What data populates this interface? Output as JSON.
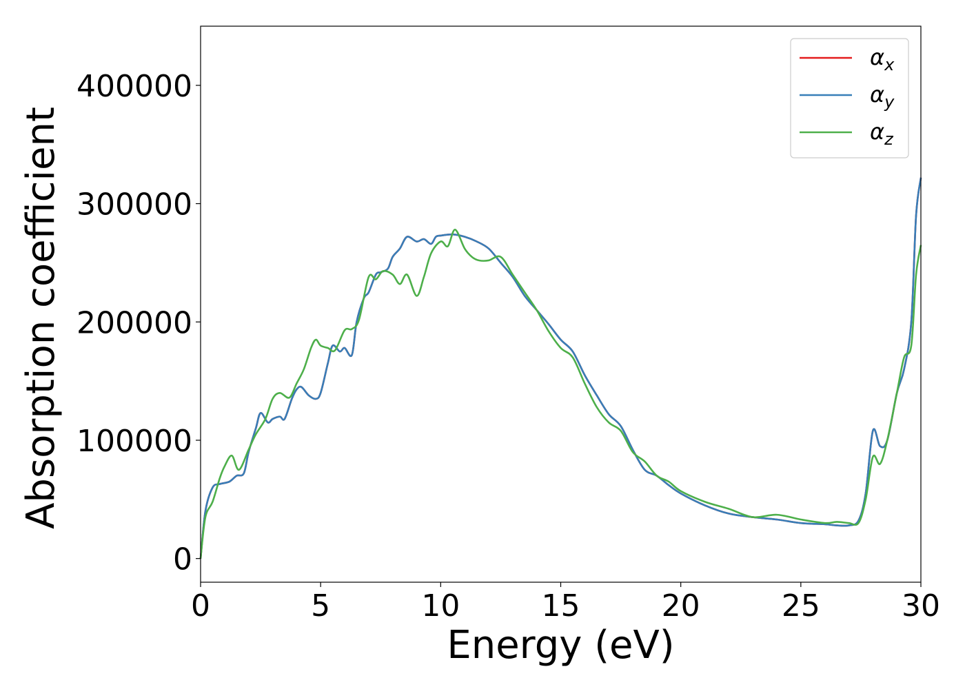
{
  "chart_data": {
    "type": "line",
    "xlabel": "Energy (eV)",
    "ylabel": "Absorption coefficient",
    "xlim": [
      0,
      30
    ],
    "ylim": [
      -20000,
      450000
    ],
    "xticks": [
      0,
      5,
      10,
      15,
      20,
      25,
      30
    ],
    "yticks": [
      0,
      100000,
      200000,
      300000,
      400000
    ],
    "legend_position": "top-right",
    "grid": false,
    "series": [
      {
        "name": "αx",
        "name_base": "α",
        "name_sub": "x",
        "color": "#e41a1c",
        "x": [
          0,
          0.2,
          0.5,
          0.8,
          1.2,
          1.5,
          1.8,
          2.0,
          2.3,
          2.5,
          2.8,
          3.0,
          3.3,
          3.5,
          3.8,
          4.0,
          4.2,
          4.5,
          4.8,
          5.0,
          5.3,
          5.5,
          5.8,
          6.0,
          6.3,
          6.5,
          6.8,
          7.0,
          7.3,
          7.5,
          7.8,
          8.0,
          8.3,
          8.6,
          9.0,
          9.3,
          9.6,
          9.8,
          10.0,
          10.5,
          11.0,
          11.5,
          12.0,
          12.5,
          13.0,
          13.5,
          14.0,
          14.5,
          15.0,
          15.5,
          16.0,
          16.5,
          17.0,
          17.5,
          18.0,
          18.5,
          19.0,
          19.5,
          20.0,
          21.0,
          22.0,
          23.0,
          24.0,
          25.0,
          26.0,
          26.5,
          27.0,
          27.4,
          27.7,
          28.0,
          28.3,
          28.6,
          29.0,
          29.3,
          29.6,
          29.8,
          30.0
        ],
        "y": [
          0,
          40000,
          60000,
          63000,
          65000,
          70000,
          72000,
          90000,
          110000,
          123000,
          115000,
          118000,
          120000,
          118000,
          135000,
          143000,
          145000,
          138000,
          135000,
          140000,
          165000,
          180000,
          175000,
          178000,
          172000,
          200000,
          220000,
          225000,
          240000,
          242000,
          245000,
          255000,
          262000,
          272000,
          268000,
          270000,
          266000,
          272000,
          273000,
          274000,
          272000,
          268000,
          262000,
          250000,
          238000,
          222000,
          210000,
          198000,
          185000,
          175000,
          155000,
          138000,
          122000,
          112000,
          92000,
          75000,
          70000,
          62000,
          55000,
          45000,
          38000,
          35000,
          33000,
          30000,
          29000,
          28000,
          28000,
          32000,
          55000,
          108000,
          95000,
          100000,
          140000,
          160000,
          200000,
          290000,
          322000
        ]
      },
      {
        "name": "αy",
        "name_base": "α",
        "name_sub": "y",
        "color": "#377eb8",
        "x": [
          0,
          0.2,
          0.5,
          0.8,
          1.2,
          1.5,
          1.8,
          2.0,
          2.3,
          2.5,
          2.8,
          3.0,
          3.3,
          3.5,
          3.8,
          4.0,
          4.2,
          4.5,
          4.8,
          5.0,
          5.3,
          5.5,
          5.8,
          6.0,
          6.3,
          6.5,
          6.8,
          7.0,
          7.3,
          7.5,
          7.8,
          8.0,
          8.3,
          8.6,
          9.0,
          9.3,
          9.6,
          9.8,
          10.0,
          10.5,
          11.0,
          11.5,
          12.0,
          12.5,
          13.0,
          13.5,
          14.0,
          14.5,
          15.0,
          15.5,
          16.0,
          16.5,
          17.0,
          17.5,
          18.0,
          18.5,
          19.0,
          19.5,
          20.0,
          21.0,
          22.0,
          23.0,
          24.0,
          25.0,
          26.0,
          26.5,
          27.0,
          27.4,
          27.7,
          28.0,
          28.3,
          28.6,
          29.0,
          29.3,
          29.6,
          29.8,
          30.0
        ],
        "y": [
          0,
          40000,
          60000,
          63000,
          65000,
          70000,
          72000,
          90000,
          110000,
          123000,
          115000,
          118000,
          120000,
          118000,
          135000,
          143000,
          145000,
          138000,
          135000,
          140000,
          165000,
          180000,
          175000,
          178000,
          172000,
          200000,
          220000,
          225000,
          240000,
          242000,
          245000,
          255000,
          262000,
          272000,
          268000,
          270000,
          266000,
          272000,
          273000,
          274000,
          272000,
          268000,
          262000,
          250000,
          238000,
          222000,
          210000,
          198000,
          185000,
          175000,
          155000,
          138000,
          122000,
          112000,
          92000,
          75000,
          70000,
          62000,
          55000,
          45000,
          38000,
          35000,
          33000,
          30000,
          29000,
          28000,
          28000,
          32000,
          55000,
          108000,
          95000,
          100000,
          140000,
          160000,
          200000,
          290000,
          322000
        ]
      },
      {
        "name": "αz",
        "name_base": "α",
        "name_sub": "z",
        "color": "#4daf4a",
        "x": [
          0,
          0.2,
          0.5,
          0.8,
          1.0,
          1.3,
          1.6,
          2.0,
          2.3,
          2.7,
          3.0,
          3.3,
          3.7,
          4.0,
          4.3,
          4.6,
          4.8,
          5.0,
          5.3,
          5.6,
          6.0,
          6.3,
          6.6,
          7.0,
          7.3,
          7.6,
          8.0,
          8.3,
          8.6,
          9.0,
          9.3,
          9.6,
          10.0,
          10.3,
          10.6,
          11.0,
          11.3,
          11.6,
          12.0,
          12.5,
          13.0,
          13.5,
          14.0,
          14.5,
          15.0,
          15.5,
          16.0,
          16.5,
          17.0,
          17.5,
          18.0,
          18.5,
          19.0,
          19.5,
          20.0,
          21.0,
          22.0,
          23.0,
          24.0,
          25.0,
          26.0,
          26.5,
          27.0,
          27.4,
          27.7,
          28.0,
          28.3,
          28.6,
          29.0,
          29.3,
          29.6,
          29.8,
          30.0
        ],
        "y": [
          0,
          35000,
          48000,
          68000,
          78000,
          87000,
          75000,
          92000,
          105000,
          118000,
          135000,
          140000,
          136000,
          148000,
          160000,
          178000,
          185000,
          180000,
          178000,
          176000,
          193000,
          194000,
          202000,
          238000,
          236000,
          243000,
          240000,
          232000,
          240000,
          222000,
          238000,
          258000,
          268000,
          264000,
          278000,
          262000,
          255000,
          252000,
          252000,
          255000,
          240000,
          225000,
          210000,
          192000,
          178000,
          170000,
          148000,
          128000,
          115000,
          108000,
          90000,
          82000,
          70000,
          65000,
          57000,
          48000,
          42000,
          35000,
          37000,
          33000,
          30000,
          31000,
          30000,
          30000,
          50000,
          86000,
          80000,
          100000,
          140000,
          170000,
          180000,
          240000,
          265000
        ]
      }
    ]
  }
}
